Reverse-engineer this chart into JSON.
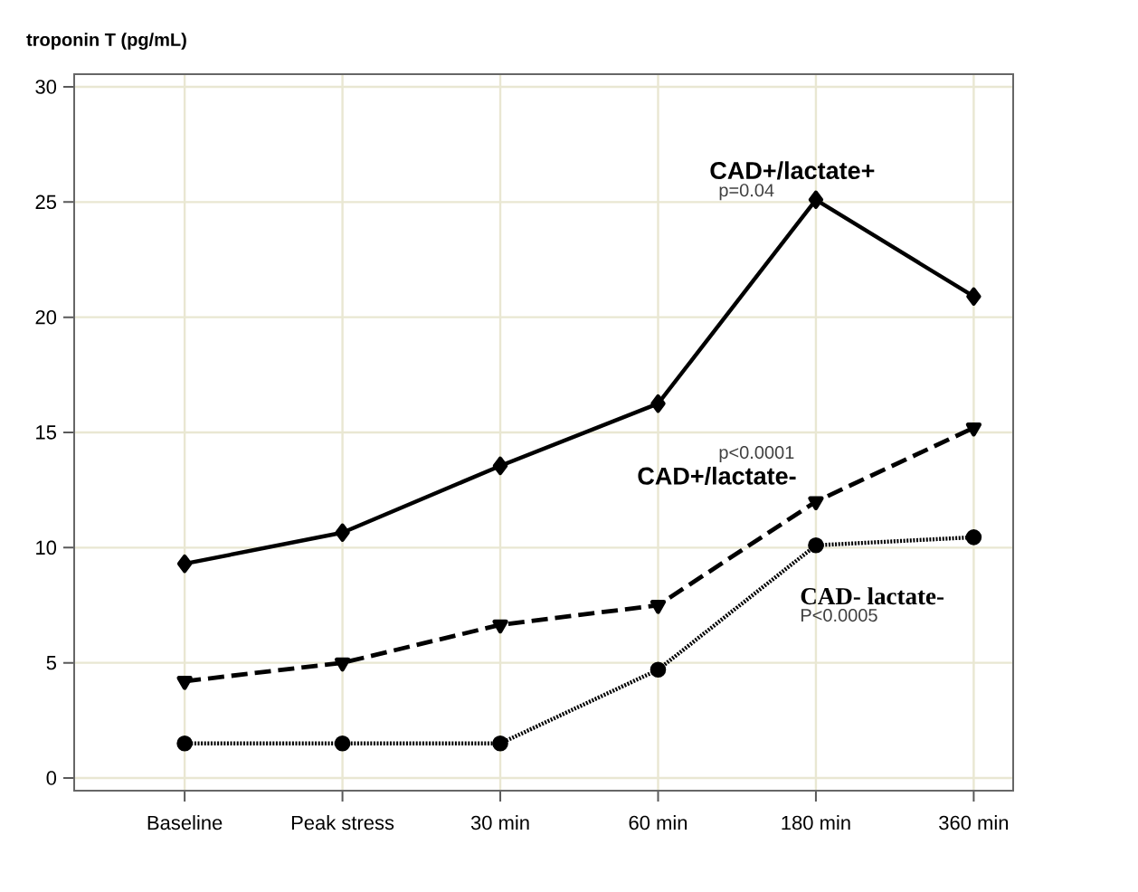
{
  "chart_data": {
    "type": "line",
    "ylabel": "troponin T (pg/mL)",
    "categories": [
      "Baseline",
      "Peak stress",
      "30 min",
      "60 min",
      "180 min",
      "360 min"
    ],
    "ylim": [
      -0.55,
      30.55
    ],
    "yticks": [
      0,
      5,
      10,
      15,
      20,
      25,
      30
    ],
    "grid": true,
    "annotations": [
      "p=0.04",
      "p<0.0001",
      "P<0.0005"
    ],
    "series": [
      {
        "name": "CAD+/lactate+",
        "color": "#000000",
        "marker": "diamond",
        "line_style": "solid",
        "values": [
          9.3,
          10.65,
          13.55,
          16.25,
          25.1,
          20.9
        ]
      },
      {
        "name": "CAD+/lactate-",
        "color": "#000000",
        "marker": "triangle",
        "line_style": "dashed",
        "values": [
          4.2,
          5.0,
          6.65,
          7.5,
          12.0,
          15.2
        ]
      },
      {
        "name": "CAD- lactate-",
        "color": "#000000",
        "marker": "circle",
        "line_style": "dotted",
        "values": [
          1.5,
          1.5,
          1.5,
          4.7,
          10.1,
          10.45
        ]
      }
    ]
  }
}
